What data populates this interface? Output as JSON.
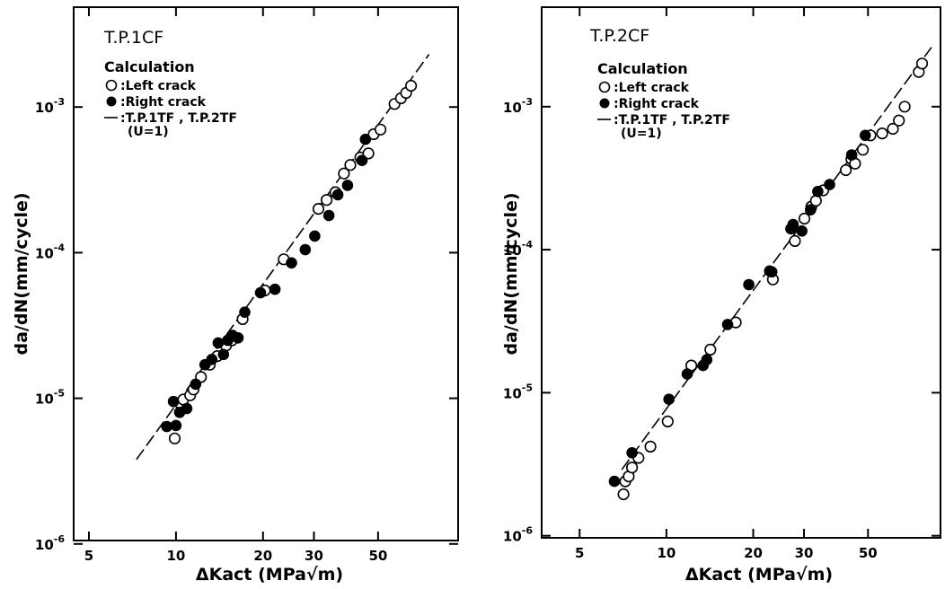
{
  "chart_data": [
    {
      "type": "scatter",
      "panel_label": "T.P.1CF",
      "legend": {
        "heading": "Calculation",
        "entries": [
          {
            "marker": "open-circle",
            "label": "Left crack"
          },
          {
            "marker": "filled-circle",
            "label": "Right crack"
          },
          {
            "marker": "dashed-line",
            "label": "T.P.1TF , T.P.2TF",
            "sublabel": "(U=1)"
          }
        ]
      },
      "xlabel": "ΔKact (MPa√m)",
      "ylabel": "da/dN(mm/cycle)",
      "xscale": "log",
      "yscale": "log",
      "xlim": [
        4.2,
        90
      ],
      "ylim": [
        1e-06,
        0.005
      ],
      "xticks": [
        5,
        10,
        20,
        30,
        50
      ],
      "yticks": [
        {
          "value": 1e-06,
          "base": "10",
          "exp": "-6"
        },
        {
          "value": 1e-05,
          "base": "10",
          "exp": "-5"
        },
        {
          "value": 0.0001,
          "base": "10",
          "exp": "-4"
        },
        {
          "value": 0.001,
          "base": "10",
          "exp": "-3"
        }
      ],
      "fit_line": {
        "x": [
          7.3,
          75
        ],
        "y": [
          3.8e-06,
          0.0023
        ]
      },
      "series": [
        {
          "name": "Left crack",
          "marker": "open",
          "x": [
            9.9,
            10.3,
            10.6,
            11.2,
            11.5,
            12.2,
            13.1,
            13.9,
            14.9,
            15.6,
            17.0,
            20.3,
            23.6,
            31.1,
            33.2,
            35.6,
            38.1,
            40.1,
            43.4,
            46.3,
            48.3,
            51.0,
            57.0,
            60.0,
            62.5,
            65.0
          ],
          "y": [
            5.3e-06,
            9.3e-06,
            9.8e-06,
            1.05e-05,
            1.15e-05,
            1.4e-05,
            1.7e-05,
            1.95e-05,
            2.3e-05,
            2.5e-05,
            3.5e-05,
            5.5e-05,
            9e-05,
            0.0002,
            0.00023,
            0.00026,
            0.00035,
            0.0004,
            0.00045,
            0.00048,
            0.00065,
            0.0007,
            0.00105,
            0.00115,
            0.00125,
            0.0014
          ]
        },
        {
          "name": "Right crack",
          "marker": "filled",
          "x": [
            9.3,
            9.8,
            10.0,
            10.3,
            10.9,
            11.7,
            12.6,
            13.3,
            14.0,
            14.6,
            15.1,
            15.7,
            16.4,
            17.3,
            19.6,
            22.0,
            25.1,
            28.0,
            30.2,
            33.8,
            36.3,
            39.2,
            44.0,
            45.2
          ],
          "y": [
            6.4e-06,
            9.5e-06,
            6.5e-06,
            8e-06,
            8.5e-06,
            1.25e-05,
            1.7e-05,
            1.85e-05,
            2.4e-05,
            2e-05,
            2.5e-05,
            2.7e-05,
            2.6e-05,
            3.9e-05,
            5.3e-05,
            5.6e-05,
            8.5e-05,
            0.000105,
            0.00013,
            0.00018,
            0.00025,
            0.00029,
            0.00043,
            0.0006
          ]
        }
      ]
    },
    {
      "type": "scatter",
      "panel_label": "T.P.2CF",
      "legend": {
        "heading": "Calculation",
        "entries": [
          {
            "marker": "open-circle",
            "label": "Left crack"
          },
          {
            "marker": "filled-circle",
            "label": "Right crack"
          },
          {
            "marker": "dashed-line",
            "label": "T.P.1TF , T.P.2TF",
            "sublabel": "(U=1)"
          }
        ]
      },
      "xlabel": "ΔKact (MPa√m)",
      "ylabel": "da/dN(mm/cycle)",
      "xscale": "log",
      "yscale": "log",
      "xlim": [
        4.2,
        90
      ],
      "ylim": [
        1e-06,
        0.005
      ],
      "xticks": [
        5,
        10,
        20,
        30,
        50
      ],
      "yticks": [
        {
          "value": 1e-06,
          "base": "10",
          "exp": "-6"
        },
        {
          "value": 1e-05,
          "base": "10",
          "exp": "-5"
        },
        {
          "value": 0.0001,
          "base": "10",
          "exp": "-4"
        },
        {
          "value": 0.001,
          "base": "10",
          "exp": "-3"
        }
      ],
      "fit_line": {
        "x": [
          7.0,
          83
        ],
        "y": [
          2.9e-06,
          0.0026
        ]
      },
      "series": [
        {
          "name": "Left crack",
          "marker": "open",
          "x": [
            7.1,
            7.2,
            7.4,
            7.6,
            8.0,
            8.8,
            10.1,
            12.2,
            14.2,
            17.4,
            23.4,
            27.9,
            30.1,
            31.8,
            33.0,
            35.0,
            41.9,
            43.8,
            45.1,
            48.0,
            51.0,
            56.0,
            61.0,
            64.0,
            67.0,
            75.0,
            77.0
          ],
          "y": [
            1.95e-06,
            2.4e-06,
            2.6e-06,
            3e-06,
            3.5e-06,
            4.2e-06,
            6.3e-06,
            1.55e-05,
            2e-05,
            3.1e-05,
            6.2e-05,
            0.000115,
            0.000165,
            0.0002,
            0.00022,
            0.00026,
            0.00036,
            0.00043,
            0.0004,
            0.0005,
            0.00063,
            0.00065,
            0.0007,
            0.0008,
            0.001,
            0.00175,
            0.002
          ]
        },
        {
          "name": "Right crack",
          "marker": "filled",
          "x": [
            6.6,
            7.6,
            10.2,
            11.8,
            13.4,
            13.8,
            16.3,
            19.3,
            22.8,
            23.2,
            27.0,
            27.5,
            29.5,
            31.6,
            33.5,
            36.8,
            43.9,
            48.9
          ],
          "y": [
            2.4e-06,
            3.8e-06,
            9e-06,
            1.35e-05,
            1.55e-05,
            1.7e-05,
            3e-05,
            5.7e-05,
            7.1e-05,
            7e-05,
            0.00014,
            0.00015,
            0.000135,
            0.00019,
            0.000255,
            0.000285,
            0.00046,
            0.00063
          ]
        }
      ]
    }
  ]
}
